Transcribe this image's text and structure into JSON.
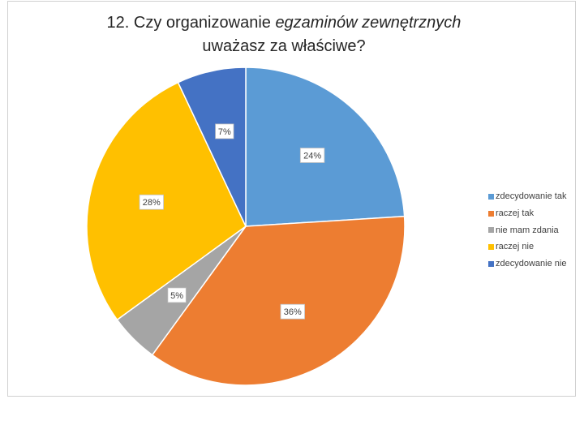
{
  "chart_data": {
    "type": "pie",
    "title": {
      "line1_prefix": "12. Czy organizowanie ",
      "line1_italic": "egzaminów zewnętrznych",
      "line2": "uważasz za właściwe?"
    },
    "slices": [
      {
        "label": "zdecydowanie tak",
        "value": 24,
        "data_label": "24%",
        "color": "#5B9BD5"
      },
      {
        "label": "raczej tak",
        "value": 36,
        "data_label": "36%",
        "color": "#ED7D31"
      },
      {
        "label": "nie mam zdania",
        "value": 5,
        "data_label": "5%",
        "color": "#A5A5A5"
      },
      {
        "label": "raczej nie",
        "value": 28,
        "data_label": "28%",
        "color": "#FFC000"
      },
      {
        "label": "zdecydowanie nie",
        "value": 7,
        "data_label": "7%",
        "color": "#4472C4"
      }
    ],
    "legend_position": "right"
  }
}
